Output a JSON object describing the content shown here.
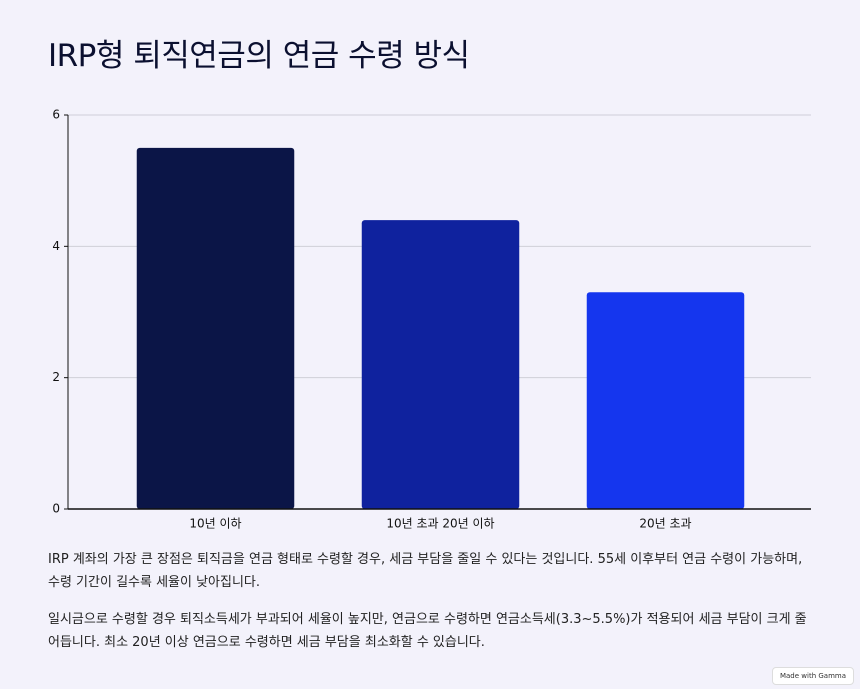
{
  "chart_data": {
    "type": "bar",
    "title": "IRP형 퇴직연금의 연금 수령 방식",
    "categories": [
      "10년 이하",
      "10년 초과 20년 이하",
      "20년 초과"
    ],
    "values": [
      5.5,
      4.4,
      3.3
    ],
    "colors": [
      "#0b1547",
      "#0f229e",
      "#1536ee"
    ],
    "ylim": [
      0,
      6
    ],
    "yticks": [
      0,
      2,
      4,
      6
    ],
    "grid": true
  },
  "paragraphs": [
    "IRP 계좌의 가장 큰 장점은 퇴직금을 연금 형태로 수령할 경우, 세금 부담을 줄일 수 있다는 것입니다. 55세 이후부터 연금 수령이 가능하며, 수령 기간이 길수록 세율이 낮아집니다.",
    "일시금으로 수령할 경우 퇴직소득세가 부과되어 세율이 높지만, 연금으로 수령하면 연금소득세(3.3~5.5%)가 적용되어 세금 부담이 크게 줄어듭니다. 최소 20년 이상 연금으로 수령하면 세금 부담을 최소화할 수 있습니다."
  ],
  "badge": "Made with Gamma"
}
